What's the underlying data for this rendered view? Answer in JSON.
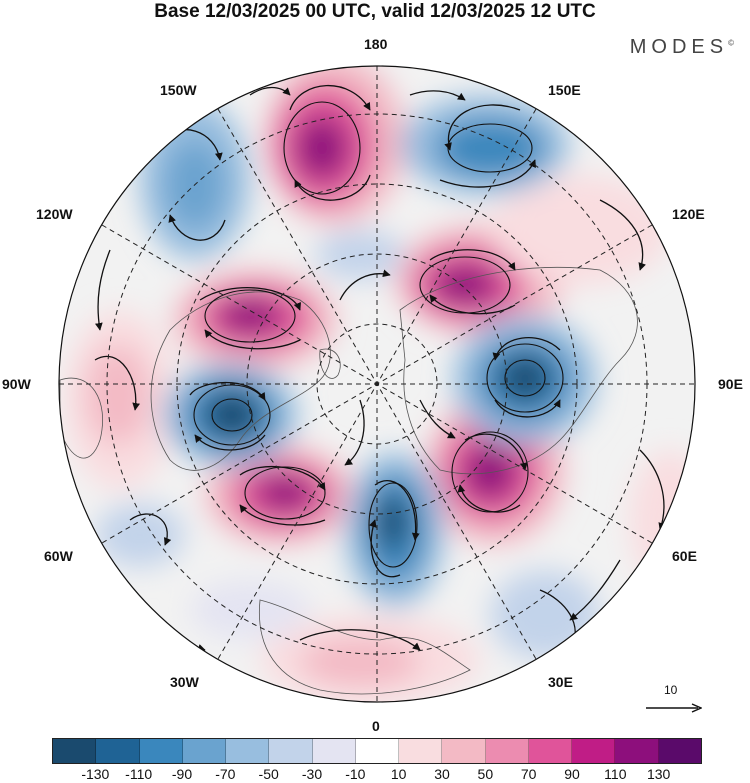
{
  "title": "Base 12/03/2025 00 UTC, valid 12/03/2025 12 UTC",
  "brand": "MODES",
  "brand_mark": "©",
  "longitude_labels": {
    "top": "180",
    "bottom": "0",
    "left": "90W",
    "right": "90E",
    "upper_left_1": "150W",
    "upper_left_2": "120W",
    "upper_right_1": "150E",
    "upper_right_2": "120E",
    "lower_left_1": "60W",
    "lower_left_2": "30W",
    "lower_right_1": "60E",
    "lower_right_2": "30E"
  },
  "reference_vector": {
    "label": "10"
  },
  "colorbar": {
    "colors": [
      "#1a4a6e",
      "#1f6395",
      "#3a87bd",
      "#6aa3cf",
      "#98bedf",
      "#c2d3ea",
      "#e4e4f2",
      "#ffffff",
      "#f9dde0",
      "#f3bac5",
      "#ec8cb0",
      "#e0549a",
      "#c01d86",
      "#8d0f7c",
      "#5a0a6a"
    ],
    "ticks": [
      "-130",
      "-110",
      "-90",
      "-70",
      "-50",
      "-30",
      "-10",
      "10",
      "30",
      "50",
      "70",
      "90",
      "110",
      "130"
    ]
  },
  "map_colors": {
    "ocean_bg": "#f2f2f2",
    "land_outline": "#555555",
    "contour": "#111111",
    "grid": "#222222"
  }
}
